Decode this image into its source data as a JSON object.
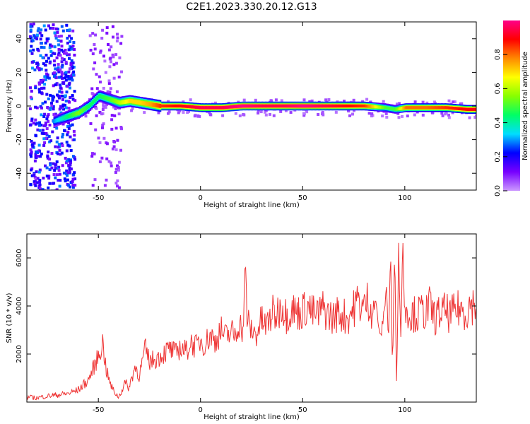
{
  "title": "C2E1.2023.330.20.12.G13",
  "chart_data": [
    {
      "type": "heatmap",
      "xlabel": "Height of straight line (km)",
      "ylabel": "Frequency (Hz)",
      "xlim": [
        -85,
        135
      ],
      "ylim": [
        -50,
        50
      ],
      "xticks": [
        -50,
        0,
        50,
        100
      ],
      "yticks": [
        -40,
        -20,
        0,
        20,
        40
      ],
      "grid": false,
      "colorbar": {
        "label": "Normalized spectral amplitude",
        "range": [
          0,
          1
        ],
        "ticks": [
          "0.0",
          "0.2",
          "0.4",
          "0.6",
          "0.8"
        ],
        "colormap": [
          "#ffffff",
          "#cc99ff",
          "#7700ff",
          "#0000ff",
          "#00ddff",
          "#00ff66",
          "#88ff00",
          "#ffff00",
          "#ff8800",
          "#ff0000",
          "#ff0088"
        ]
      },
      "ridge": {
        "x": [
          -72,
          -65,
          -60,
          -55,
          -50,
          -45,
          -40,
          -35,
          -30,
          -25,
          -20,
          -10,
          0,
          10,
          20,
          30,
          40,
          50,
          60,
          70,
          80,
          90,
          95,
          100,
          110,
          120,
          130,
          135
        ],
        "freq": [
          -9,
          -6,
          -4,
          0,
          6,
          4,
          2,
          3,
          2,
          1,
          0,
          0,
          -1,
          -1,
          0,
          0,
          0,
          0,
          0,
          0,
          0,
          -1,
          -2,
          -1,
          -1,
          -1,
          -2,
          -2
        ],
        "amplitude": [
          0.3,
          0.45,
          0.55,
          0.45,
          0.45,
          0.5,
          0.6,
          0.7,
          0.7,
          0.75,
          0.85,
          0.9,
          0.95,
          0.95,
          1.0,
          0.95,
          0.95,
          1.0,
          0.95,
          0.9,
          0.85,
          0.5,
          0.5,
          0.8,
          0.8,
          0.85,
          0.9,
          0.9
        ]
      }
    },
    {
      "type": "line",
      "xlabel": "Height of straight line (km)",
      "ylabel": "SNR (10 * v/v)",
      "xlim": [
        -85,
        135
      ],
      "ylim": [
        0,
        7000
      ],
      "xticks": [
        -50,
        0,
        50,
        100
      ],
      "yticks": [
        2000,
        4000,
        6000
      ],
      "color": "#ee3333",
      "grid": false,
      "series": [
        {
          "x": [
            -85,
            -80,
            -75,
            -70,
            -65,
            -60,
            -55,
            -52,
            -50,
            -48,
            -46,
            -44,
            -42,
            -40,
            -37,
            -35,
            -32,
            -30,
            -27,
            -25,
            -22,
            -20,
            -17,
            -15,
            -12,
            -10,
            -7,
            -5,
            -2,
            0,
            2,
            5,
            7,
            10,
            12,
            15,
            17,
            19,
            20,
            21,
            22,
            23,
            25,
            27,
            30,
            32,
            35,
            37,
            40,
            42,
            45,
            47,
            50,
            52,
            55,
            57,
            60,
            62,
            65,
            67,
            70,
            72,
            75,
            77,
            80,
            82,
            84,
            86,
            88,
            90,
            91,
            92,
            93,
            94,
            95,
            96,
            97,
            98,
            99,
            100,
            101,
            102,
            104,
            106,
            108,
            110,
            112,
            115,
            117,
            120,
            122,
            125,
            127,
            130,
            132,
            135
          ],
          "y": [
            200,
            180,
            250,
            300,
            350,
            500,
            900,
            1500,
            1900,
            2500,
            1300,
            700,
            400,
            200,
            800,
            600,
            1500,
            1100,
            2200,
            1700,
            1800,
            1900,
            2100,
            2200,
            2000,
            2300,
            2100,
            2500,
            2300,
            2600,
            2400,
            2800,
            2500,
            3000,
            2700,
            2900,
            2800,
            3400,
            3000,
            3200,
            5400,
            3300,
            3000,
            2800,
            3400,
            3100,
            3700,
            3600,
            4100,
            3600,
            3900,
            3700,
            3800,
            4000,
            3700,
            3600,
            3900,
            3700,
            3500,
            3700,
            3600,
            3500,
            3900,
            4200,
            3900,
            4300,
            3800,
            4100,
            2600,
            3800,
            5000,
            2400,
            6400,
            1200,
            6500,
            700,
            6300,
            2500,
            6900,
            3300,
            4300,
            3600,
            3700,
            3600,
            3800,
            3700,
            4000,
            3500,
            3700,
            3800,
            3600,
            3800,
            3900,
            3700,
            4100,
            4000
          ]
        }
      ]
    }
  ]
}
